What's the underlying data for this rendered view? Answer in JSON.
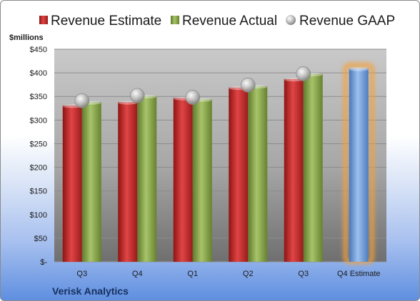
{
  "chart_data": {
    "type": "bar",
    "categories": [
      "Q3",
      "Q4",
      "Q1",
      "Q2",
      "Q3",
      "Q4 Estimate"
    ],
    "series": [
      {
        "name": "Revenue Estimate",
        "kind": "bar",
        "color": "#cc2a2a",
        "values": [
          331,
          338,
          347,
          369,
          387,
          null
        ]
      },
      {
        "name": "Revenue Actual",
        "kind": "bar",
        "color": "#8aa84a",
        "values": [
          338,
          351,
          344,
          372,
          398,
          null
        ]
      },
      {
        "name": "Revenue GAAP",
        "kind": "marker",
        "color": "#b8b8b8",
        "values": [
          341,
          352,
          348,
          374,
          398,
          null
        ]
      },
      {
        "name": "Q4 Estimate",
        "kind": "bar-highlight",
        "color": "#6d9ad6",
        "glow": "#f4a23c",
        "values": [
          null,
          null,
          null,
          null,
          null,
          409
        ]
      }
    ],
    "legend": [
      "Revenue Estimate",
      "Revenue Actual",
      "Revenue GAAP"
    ],
    "legend_position": "top",
    "ylabel": "$millions",
    "ylim": [
      0,
      450
    ],
    "yticks": [
      "$-",
      "$50",
      "$100",
      "$150",
      "$200",
      "$250",
      "$300",
      "$350",
      "$400",
      "$450"
    ],
    "grid": true
  },
  "company": "Verisk Analytics"
}
